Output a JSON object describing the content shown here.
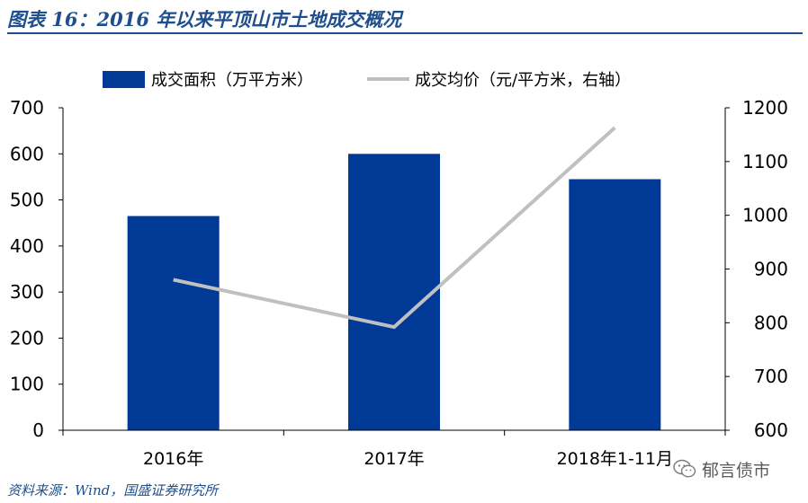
{
  "figure": {
    "title": "图表 16：2016 年以来平顶山市土地成交概况",
    "source": "资料来源：Wind，国盛证券研究所",
    "watermark_text": "郁言债市",
    "watermark_icon": "wechat-icon"
  },
  "colors": {
    "title": "#1f4e8c",
    "bar": "#003a96",
    "line": "#c0c0c0",
    "axis": "#000000"
  },
  "chart_data": {
    "type": "bar+line",
    "categories": [
      "2016年",
      "2017年",
      "2018年1-11月"
    ],
    "series": [
      {
        "name": "成交面积（万平方米）",
        "type": "bar",
        "axis": "left",
        "values": [
          465,
          600,
          545
        ]
      },
      {
        "name": "成交均价（元/平方米，右轴）",
        "type": "line",
        "axis": "right",
        "values": [
          880,
          792,
          1163
        ]
      }
    ],
    "y_left": {
      "min": 0,
      "max": 700,
      "ticks": [
        0,
        100,
        200,
        300,
        400,
        500,
        600,
        700
      ]
    },
    "y_right": {
      "min": 600,
      "max": 1200,
      "ticks": [
        600,
        700,
        800,
        900,
        1000,
        1100,
        1200
      ]
    },
    "legend_position": "top",
    "grid": false
  }
}
